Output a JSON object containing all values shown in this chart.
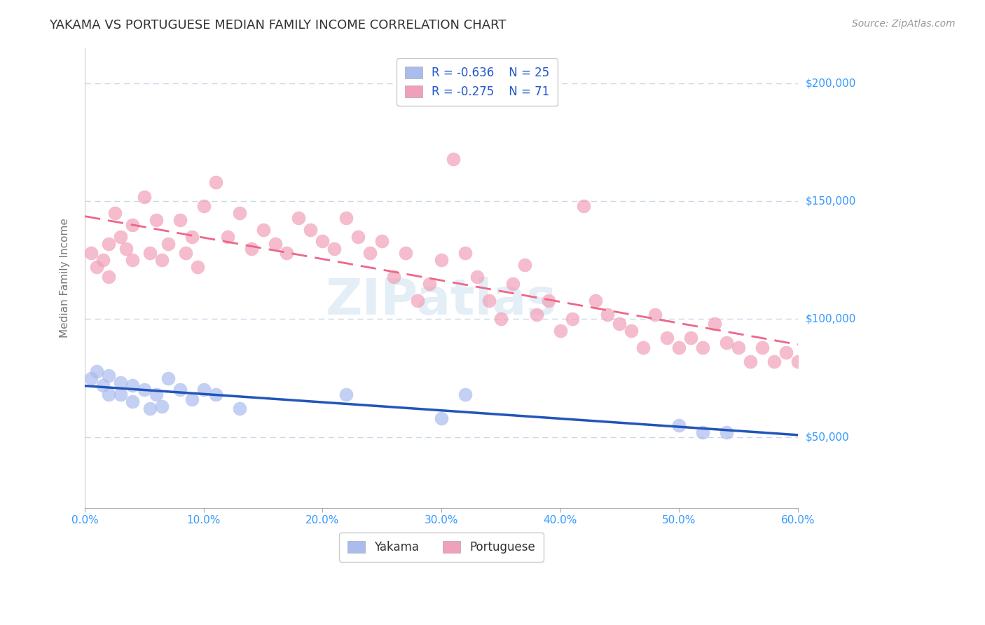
{
  "title": "YAKAMA VS PORTUGUESE MEDIAN FAMILY INCOME CORRELATION CHART",
  "source_text": "Source: ZipAtlas.com",
  "ylabel": "Median Family Income",
  "xlim": [
    0.0,
    0.6
  ],
  "ylim": [
    20000,
    215000
  ],
  "yticks": [
    50000,
    100000,
    150000,
    200000
  ],
  "xticks": [
    0.0,
    0.1,
    0.2,
    0.3,
    0.4,
    0.5,
    0.6
  ],
  "xtick_labels": [
    "0.0%",
    "10.0%",
    "20.0%",
    "30.0%",
    "40.0%",
    "50.0%",
    "60.0%"
  ],
  "ytick_labels": [
    "$50,000",
    "$100,000",
    "$150,000",
    "$200,000"
  ],
  "grid_color": "#c8d8e8",
  "background_color": "#ffffff",
  "title_color": "#333333",
  "axis_label_color": "#777777",
  "tick_label_color": "#3399ff",
  "yakama_color": "#aabcee",
  "portuguese_color": "#f0a0b8",
  "yakama_line_color": "#2255bb",
  "portuguese_line_color": "#ee6688",
  "legend_r1": "R = -0.636",
  "legend_n1": "N = 25",
  "legend_r2": "R = -0.275",
  "legend_n2": "N = 71",
  "watermark": "ZIPatlas",
  "yakama_x": [
    0.005,
    0.01,
    0.015,
    0.02,
    0.02,
    0.03,
    0.03,
    0.04,
    0.04,
    0.05,
    0.055,
    0.06,
    0.065,
    0.07,
    0.08,
    0.09,
    0.1,
    0.11,
    0.13,
    0.22,
    0.3,
    0.32,
    0.5,
    0.52,
    0.54
  ],
  "yakama_y": [
    75000,
    78000,
    72000,
    76000,
    68000,
    73000,
    68000,
    72000,
    65000,
    70000,
    62000,
    68000,
    63000,
    75000,
    70000,
    66000,
    70000,
    68000,
    62000,
    68000,
    58000,
    68000,
    55000,
    52000,
    52000
  ],
  "portuguese_x": [
    0.005,
    0.01,
    0.015,
    0.02,
    0.02,
    0.025,
    0.03,
    0.035,
    0.04,
    0.04,
    0.05,
    0.055,
    0.06,
    0.065,
    0.07,
    0.08,
    0.085,
    0.09,
    0.095,
    0.1,
    0.11,
    0.12,
    0.13,
    0.14,
    0.15,
    0.16,
    0.17,
    0.18,
    0.19,
    0.2,
    0.21,
    0.22,
    0.23,
    0.24,
    0.25,
    0.26,
    0.27,
    0.28,
    0.29,
    0.3,
    0.31,
    0.32,
    0.33,
    0.34,
    0.35,
    0.36,
    0.37,
    0.38,
    0.39,
    0.4,
    0.41,
    0.42,
    0.43,
    0.44,
    0.45,
    0.46,
    0.47,
    0.48,
    0.49,
    0.5,
    0.51,
    0.52,
    0.53,
    0.54,
    0.55,
    0.56,
    0.57,
    0.58,
    0.59,
    0.6,
    0.61
  ],
  "portuguese_y": [
    128000,
    122000,
    125000,
    118000,
    132000,
    145000,
    135000,
    130000,
    140000,
    125000,
    152000,
    128000,
    142000,
    125000,
    132000,
    142000,
    128000,
    135000,
    122000,
    148000,
    158000,
    135000,
    145000,
    130000,
    138000,
    132000,
    128000,
    143000,
    138000,
    133000,
    130000,
    143000,
    135000,
    128000,
    133000,
    118000,
    128000,
    108000,
    115000,
    125000,
    168000,
    128000,
    118000,
    108000,
    100000,
    115000,
    123000,
    102000,
    108000,
    95000,
    100000,
    148000,
    108000,
    102000,
    98000,
    95000,
    88000,
    102000,
    92000,
    88000,
    92000,
    88000,
    98000,
    90000,
    88000,
    82000,
    88000,
    82000,
    86000,
    82000,
    85000
  ]
}
